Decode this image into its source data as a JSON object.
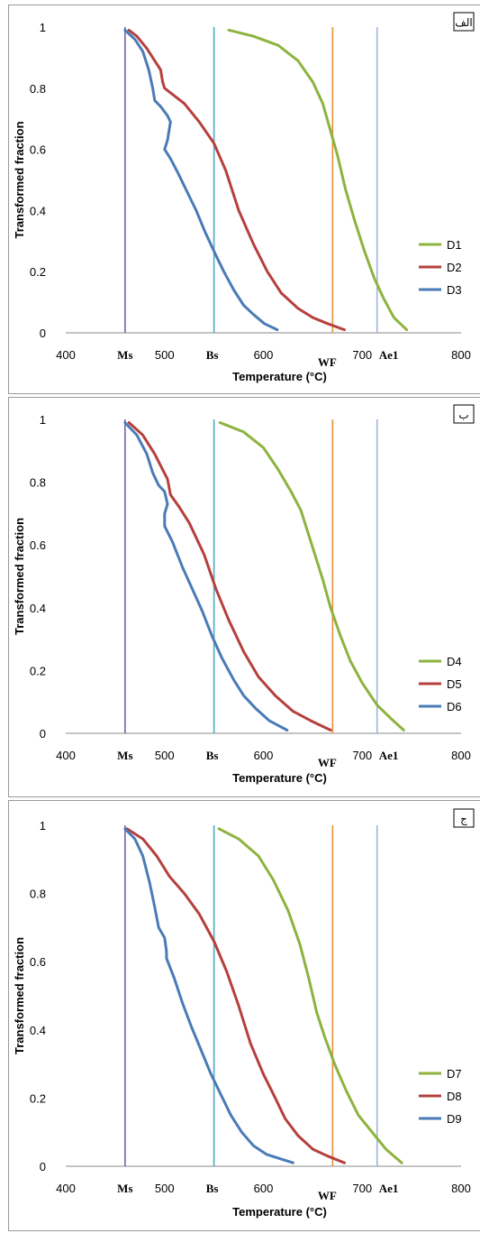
{
  "colors": {
    "D1": "#8db33f",
    "D2": "#b5403d",
    "D3": "#4a7bb7",
    "D4": "#8db33f",
    "D5": "#b5403d",
    "D6": "#4a7bb7",
    "D7": "#8db33f",
    "D8": "#b5403d",
    "D9": "#4a7bb7",
    "Ms": "#7065a8",
    "Bs": "#4bacc6",
    "WF": "#e8913a",
    "Ae1": "#9fb4db"
  },
  "chart_data": [
    {
      "type": "line",
      "panel_tag": "الف",
      "xlabel": "Temperature (°C)",
      "ylabel": "Transformed  fraction",
      "xlim": [
        400,
        800
      ],
      "ylim": [
        0,
        1
      ],
      "x_ticks": [
        "400",
        "500",
        "600",
        "700",
        "800"
      ],
      "y_ticks": [
        "0",
        "0.2",
        "0.4",
        "0.6",
        "0.8",
        "1"
      ],
      "vertical_lines": [
        {
          "label": "Ms",
          "x": 460,
          "color_key": "Ms"
        },
        {
          "label": "Bs",
          "x": 550,
          "color_key": "Bs"
        },
        {
          "label": "WF",
          "x": 670,
          "color_key": "WF"
        },
        {
          "label": "Ae1",
          "x": 715,
          "color_key": "Ae1"
        }
      ],
      "series": [
        {
          "name": "D1",
          "color_key": "D1",
          "points": [
            [
              565,
              0.99
            ],
            [
              590,
              0.97
            ],
            [
              615,
              0.94
            ],
            [
              635,
              0.89
            ],
            [
              650,
              0.82
            ],
            [
              660,
              0.75
            ],
            [
              668,
              0.66
            ],
            [
              675,
              0.58
            ],
            [
              683,
              0.47
            ],
            [
              692,
              0.37
            ],
            [
              702,
              0.27
            ],
            [
              712,
              0.18
            ],
            [
              722,
              0.11
            ],
            [
              732,
              0.05
            ],
            [
              745,
              0.01
            ]
          ]
        },
        {
          "name": "D2",
          "color_key": "D2",
          "points": [
            [
              464,
              0.99
            ],
            [
              472,
              0.97
            ],
            [
              482,
              0.93
            ],
            [
              490,
              0.89
            ],
            [
              496,
              0.86
            ],
            [
              498,
              0.82
            ],
            [
              500,
              0.8
            ],
            [
              508,
              0.78
            ],
            [
              520,
              0.75
            ],
            [
              535,
              0.69
            ],
            [
              550,
              0.62
            ],
            [
              562,
              0.53
            ],
            [
              575,
              0.4
            ],
            [
              590,
              0.29
            ],
            [
              604,
              0.2
            ],
            [
              618,
              0.13
            ],
            [
              635,
              0.08
            ],
            [
              650,
              0.05
            ],
            [
              665,
              0.03
            ],
            [
              682,
              0.01
            ]
          ]
        },
        {
          "name": "D3",
          "color_key": "D3",
          "points": [
            [
              460,
              0.99
            ],
            [
              470,
              0.96
            ],
            [
              478,
              0.92
            ],
            [
              484,
              0.86
            ],
            [
              488,
              0.8
            ],
            [
              490,
              0.76
            ],
            [
              496,
              0.74
            ],
            [
              503,
              0.71
            ],
            [
              506,
              0.69
            ],
            [
              503,
              0.63
            ],
            [
              500,
              0.6
            ],
            [
              506,
              0.57
            ],
            [
              514,
              0.52
            ],
            [
              523,
              0.46
            ],
            [
              532,
              0.4
            ],
            [
              541,
              0.33
            ],
            [
              551,
              0.26
            ],
            [
              560,
              0.2
            ],
            [
              570,
              0.14
            ],
            [
              580,
              0.09
            ],
            [
              590,
              0.06
            ],
            [
              601,
              0.03
            ],
            [
              614,
              0.01
            ]
          ]
        }
      ]
    },
    {
      "type": "line",
      "panel_tag": "ب",
      "xlabel": "Temperature (°C)",
      "ylabel": "Transformed  fraction",
      "xlim": [
        400,
        800
      ],
      "ylim": [
        0,
        1
      ],
      "x_ticks": [
        "400",
        "500",
        "600",
        "700",
        "800"
      ],
      "y_ticks": [
        "0",
        "0.2",
        "0.4",
        "0.6",
        "0.8",
        "1"
      ],
      "vertical_lines": [
        {
          "label": "Ms",
          "x": 460,
          "color_key": "Ms"
        },
        {
          "label": "Bs",
          "x": 550,
          "color_key": "Bs"
        },
        {
          "label": "WF",
          "x": 670,
          "color_key": "WF"
        },
        {
          "label": "Ae1",
          "x": 715,
          "color_key": "Ae1"
        }
      ],
      "series": [
        {
          "name": "D4",
          "color_key": "D4",
          "points": [
            [
              556,
              0.99
            ],
            [
              580,
              0.96
            ],
            [
              600,
              0.91
            ],
            [
              615,
              0.84
            ],
            [
              628,
              0.77
            ],
            [
              638,
              0.71
            ],
            [
              645,
              0.64
            ],
            [
              652,
              0.57
            ],
            [
              660,
              0.49
            ],
            [
              668,
              0.4
            ],
            [
              678,
              0.31
            ],
            [
              688,
              0.23
            ],
            [
              700,
              0.16
            ],
            [
              715,
              0.09
            ],
            [
              728,
              0.05
            ],
            [
              742,
              0.01
            ]
          ]
        },
        {
          "name": "D5",
          "color_key": "D5",
          "points": [
            [
              464,
              0.99
            ],
            [
              478,
              0.95
            ],
            [
              490,
              0.89
            ],
            [
              498,
              0.84
            ],
            [
              503,
              0.81
            ],
            [
              506,
              0.76
            ],
            [
              515,
              0.72
            ],
            [
              525,
              0.67
            ],
            [
              540,
              0.57
            ],
            [
              552,
              0.46
            ],
            [
              565,
              0.36
            ],
            [
              580,
              0.26
            ],
            [
              595,
              0.18
            ],
            [
              612,
              0.12
            ],
            [
              630,
              0.07
            ],
            [
              648,
              0.04
            ],
            [
              668,
              0.01
            ]
          ]
        },
        {
          "name": "D6",
          "color_key": "D6",
          "points": [
            [
              460,
              0.99
            ],
            [
              472,
              0.95
            ],
            [
              482,
              0.89
            ],
            [
              488,
              0.83
            ],
            [
              494,
              0.79
            ],
            [
              500,
              0.77
            ],
            [
              503,
              0.73
            ],
            [
              500,
              0.7
            ],
            [
              500,
              0.66
            ],
            [
              508,
              0.61
            ],
            [
              518,
              0.53
            ],
            [
              528,
              0.46
            ],
            [
              538,
              0.39
            ],
            [
              548,
              0.31
            ],
            [
              558,
              0.24
            ],
            [
              570,
              0.17
            ],
            [
              580,
              0.12
            ],
            [
              592,
              0.08
            ],
            [
              606,
              0.04
            ],
            [
              624,
              0.01
            ]
          ]
        }
      ]
    },
    {
      "type": "line",
      "panel_tag": "ج",
      "xlabel": "Temperature (°C)",
      "ylabel": "Transformed  fraction",
      "xlim": [
        400,
        800
      ],
      "ylim": [
        0,
        1
      ],
      "x_ticks": [
        "400",
        "500",
        "600",
        "700",
        "800"
      ],
      "y_ticks": [
        "0",
        "0.2",
        "0.4",
        "0.6",
        "0.8",
        "1"
      ],
      "vertical_lines": [
        {
          "label": "Ms",
          "x": 460,
          "color_key": "Ms"
        },
        {
          "label": "Bs",
          "x": 550,
          "color_key": "Bs"
        },
        {
          "label": "WF",
          "x": 670,
          "color_key": "WF"
        },
        {
          "label": "Ae1",
          "x": 715,
          "color_key": "Ae1"
        }
      ],
      "series": [
        {
          "name": "D7",
          "color_key": "D7",
          "points": [
            [
              555,
              0.99
            ],
            [
              575,
              0.96
            ],
            [
              595,
              0.91
            ],
            [
              610,
              0.84
            ],
            [
              625,
              0.75
            ],
            [
              637,
              0.65
            ],
            [
              646,
              0.55
            ],
            [
              654,
              0.45
            ],
            [
              662,
              0.38
            ],
            [
              672,
              0.3
            ],
            [
              684,
              0.22
            ],
            [
              696,
              0.15
            ],
            [
              710,
              0.1
            ],
            [
              724,
              0.05
            ],
            [
              740,
              0.01
            ]
          ]
        },
        {
          "name": "D8",
          "color_key": "D8",
          "points": [
            [
              462,
              0.99
            ],
            [
              478,
              0.96
            ],
            [
              492,
              0.91
            ],
            [
              505,
              0.85
            ],
            [
              520,
              0.8
            ],
            [
              535,
              0.74
            ],
            [
              550,
              0.66
            ],
            [
              563,
              0.57
            ],
            [
              575,
              0.47
            ],
            [
              587,
              0.36
            ],
            [
              600,
              0.27
            ],
            [
              612,
              0.2
            ],
            [
              622,
              0.14
            ],
            [
              635,
              0.09
            ],
            [
              650,
              0.05
            ],
            [
              665,
              0.03
            ],
            [
              682,
              0.01
            ]
          ]
        },
        {
          "name": "D9",
          "color_key": "D9",
          "points": [
            [
              460,
              0.99
            ],
            [
              470,
              0.96
            ],
            [
              478,
              0.91
            ],
            [
              485,
              0.83
            ],
            [
              490,
              0.76
            ],
            [
              494,
              0.7
            ],
            [
              500,
              0.67
            ],
            [
              502,
              0.63
            ],
            [
              502,
              0.61
            ],
            [
              510,
              0.55
            ],
            [
              518,
              0.48
            ],
            [
              527,
              0.41
            ],
            [
              537,
              0.34
            ],
            [
              547,
              0.27
            ],
            [
              557,
              0.21
            ],
            [
              567,
              0.15
            ],
            [
              578,
              0.1
            ],
            [
              590,
              0.06
            ],
            [
              603,
              0.035
            ],
            [
              630,
              0.01
            ]
          ]
        }
      ]
    }
  ]
}
